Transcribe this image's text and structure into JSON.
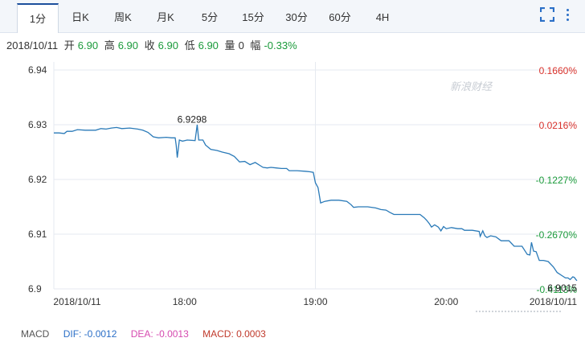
{
  "tabs": [
    {
      "label": "1分",
      "active": true
    },
    {
      "label": "日K",
      "active": false
    },
    {
      "label": "周K",
      "active": false
    },
    {
      "label": "月K",
      "active": false
    },
    {
      "label": "5分",
      "active": false
    },
    {
      "label": "15分",
      "active": false
    },
    {
      "label": "30分",
      "active": false
    },
    {
      "label": "60分",
      "active": false
    },
    {
      "label": "4H",
      "active": false
    }
  ],
  "toolbar": {
    "fullscreen_icon": "fullscreen-icon",
    "more_icon": "vertical-dots-icon",
    "accent": "#2b6fc7"
  },
  "info": {
    "date": "2018/10/11",
    "open_label": "开",
    "open": "6.90",
    "high_label": "高",
    "high": "6.90",
    "close_label": "收",
    "close": "6.90",
    "low_label": "低",
    "low": "6.90",
    "volume_label": "量",
    "volume": "0",
    "change_label": "幅",
    "change": "-0.33%"
  },
  "watermark": "新浪财经",
  "chart_data": {
    "type": "line",
    "series_color": "#2a7ab8",
    "y_ticks": [
      "6.94",
      "6.93",
      "6.92",
      "6.91",
      "6.9"
    ],
    "y_values": [
      6.94,
      6.93,
      6.92,
      6.91,
      6.9
    ],
    "ylim": [
      6.9,
      6.94
    ],
    "pct_ticks": [
      "0.1660%",
      "0.0216%",
      "-0.1227%",
      "-0.2670%",
      "-0.4113%"
    ],
    "pct_colors": [
      "#d8302a",
      "#d8302a",
      "#1a9a3a",
      "#1a9a3a",
      "#1a9a3a"
    ],
    "x_tick_labels": [
      "2018/10/11",
      "18:00",
      "19:00",
      "20:00",
      "2018/10/11"
    ],
    "x_tick_positions": [
      0,
      0.25,
      0.5,
      0.75,
      1.0
    ],
    "annotations": [
      {
        "text": "6.9298",
        "x": 0.25,
        "y": 6.9298
      },
      {
        "text": "6.9015",
        "x": 1.0,
        "y": 6.9015
      }
    ],
    "points": [
      [
        0.0,
        6.9285
      ],
      [
        0.01,
        6.9285
      ],
      [
        0.02,
        6.9284
      ],
      [
        0.025,
        6.9288
      ],
      [
        0.035,
        6.9288
      ],
      [
        0.045,
        6.9291
      ],
      [
        0.06,
        6.929
      ],
      [
        0.08,
        6.929
      ],
      [
        0.09,
        6.9293
      ],
      [
        0.1,
        6.9292
      ],
      [
        0.11,
        6.9294
      ],
      [
        0.12,
        6.9295
      ],
      [
        0.13,
        6.9293
      ],
      [
        0.145,
        6.9294
      ],
      [
        0.16,
        6.9292
      ],
      [
        0.17,
        6.929
      ],
      [
        0.18,
        6.9286
      ],
      [
        0.19,
        6.9278
      ],
      [
        0.2,
        6.9276
      ],
      [
        0.215,
        6.9277
      ],
      [
        0.225,
        6.9276
      ],
      [
        0.232,
        6.9276
      ],
      [
        0.234,
        6.9262
      ],
      [
        0.236,
        6.924
      ],
      [
        0.24,
        6.9272
      ],
      [
        0.246,
        6.927
      ],
      [
        0.255,
        6.9272
      ],
      [
        0.27,
        6.9271
      ],
      [
        0.274,
        6.93
      ],
      [
        0.277,
        6.9272
      ],
      [
        0.285,
        6.9272
      ],
      [
        0.29,
        6.9263
      ],
      [
        0.3,
        6.9255
      ],
      [
        0.312,
        6.9253
      ],
      [
        0.322,
        6.925
      ],
      [
        0.335,
        6.9247
      ],
      [
        0.345,
        6.9242
      ],
      [
        0.355,
        6.9232
      ],
      [
        0.365,
        6.9233
      ],
      [
        0.375,
        6.9227
      ],
      [
        0.385,
        6.9231
      ],
      [
        0.395,
        6.9225
      ],
      [
        0.4,
        6.9222
      ],
      [
        0.408,
        6.9221
      ],
      [
        0.415,
        6.9222
      ],
      [
        0.425,
        6.9221
      ],
      [
        0.435,
        6.922
      ],
      [
        0.445,
        6.922
      ],
      [
        0.45,
        6.9216
      ],
      [
        0.465,
        6.9216
      ],
      [
        0.48,
        6.9215
      ],
      [
        0.49,
        6.9214
      ],
      [
        0.496,
        6.9213
      ],
      [
        0.5,
        6.9194
      ],
      [
        0.505,
        6.9185
      ],
      [
        0.51,
        6.9157
      ],
      [
        0.518,
        6.916
      ],
      [
        0.53,
        6.9162
      ],
      [
        0.545,
        6.9162
      ],
      [
        0.56,
        6.916
      ],
      [
        0.568,
        6.9154
      ],
      [
        0.573,
        6.9149
      ],
      [
        0.582,
        6.915
      ],
      [
        0.6,
        6.915
      ],
      [
        0.615,
        6.9148
      ],
      [
        0.625,
        6.9145
      ],
      [
        0.635,
        6.9144
      ],
      [
        0.642,
        6.914
      ],
      [
        0.65,
        6.9136
      ],
      [
        0.665,
        6.9136
      ],
      [
        0.685,
        6.9136
      ],
      [
        0.7,
        6.9136
      ],
      [
        0.708,
        6.913
      ],
      [
        0.713,
        6.9125
      ],
      [
        0.718,
        6.9119
      ],
      [
        0.722,
        6.9113
      ],
      [
        0.728,
        6.9117
      ],
      [
        0.735,
        6.9113
      ],
      [
        0.74,
        6.9106
      ],
      [
        0.745,
        6.9114
      ],
      [
        0.75,
        6.911
      ],
      [
        0.76,
        6.9112
      ],
      [
        0.772,
        6.911
      ],
      [
        0.78,
        6.911
      ],
      [
        0.785,
        6.9107
      ],
      [
        0.8,
        6.9107
      ],
      [
        0.813,
        6.9105
      ],
      [
        0.815,
        6.9096
      ],
      [
        0.82,
        6.9106
      ],
      [
        0.824,
        6.9097
      ],
      [
        0.828,
        6.9094
      ],
      [
        0.835,
        6.9097
      ],
      [
        0.845,
        6.9095
      ],
      [
        0.855,
        6.9088
      ],
      [
        0.87,
        6.9088
      ],
      [
        0.88,
        6.9078
      ],
      [
        0.895,
        6.9078
      ],
      [
        0.905,
        6.9063
      ],
      [
        0.91,
        6.9062
      ],
      [
        0.913,
        6.9085
      ],
      [
        0.917,
        6.9069
      ],
      [
        0.922,
        6.9068
      ],
      [
        0.928,
        6.9052
      ],
      [
        0.936,
        6.9052
      ],
      [
        0.945,
        6.905
      ],
      [
        0.955,
        6.904
      ],
      [
        0.962,
        6.903
      ],
      [
        0.97,
        6.9025
      ],
      [
        0.978,
        6.902
      ],
      [
        0.983,
        6.902
      ],
      [
        0.987,
        6.9017
      ],
      [
        0.992,
        6.9022
      ],
      [
        0.995,
        6.9021
      ],
      [
        0.998,
        6.9017
      ],
      [
        1.0,
        6.9015
      ]
    ]
  },
  "macd": {
    "label": "MACD",
    "dif_label": "DIF: -0.0012",
    "dea_label": "DEA: -0.0013",
    "macd_label": "MACD: 0.0003",
    "dif_color": "#2b6fc7",
    "dea_color": "#d64bb0",
    "macd_color": "#c0392b"
  }
}
